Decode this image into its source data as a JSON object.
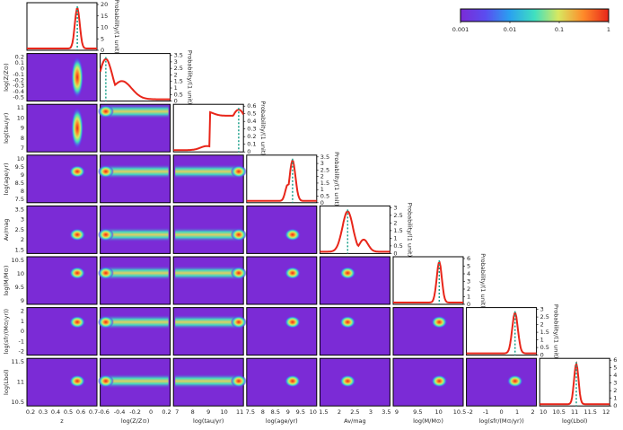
{
  "chart_data": {
    "type": "corner",
    "title": "",
    "parameters": [
      {
        "key": "z",
        "label": "z",
        "ticks": [
          "0.2",
          "0.3",
          "0.4",
          "0.5",
          "0.6",
          "0.7"
        ],
        "range": [
          0.15,
          0.72
        ],
        "peak": 0.56,
        "sigma": 0.02
      },
      {
        "key": "logZ",
        "label": "log(Z/Z⊙)",
        "ticks": [
          "-0.6",
          "-0.4",
          "-0.2",
          "0",
          "0.2"
        ],
        "range": [
          -0.62,
          0.25
        ],
        "peak": -0.55,
        "sigma": 0.08
      },
      {
        "key": "logtau",
        "label": "log(tau/yr)",
        "ticks": [
          "7",
          "8",
          "9",
          "10",
          "11"
        ],
        "range": [
          6.7,
          11.1
        ],
        "peak": 10.8,
        "sigma": 0.6
      },
      {
        "key": "logage",
        "label": "log(age/yr)",
        "ticks": [
          "7.5",
          "8",
          "8.5",
          "9",
          "9.5",
          "10"
        ],
        "range": [
          7.2,
          10.1
        ],
        "peak": 9.1,
        "sigma": 0.12
      },
      {
        "key": "Av",
        "label": "Av/mag",
        "ticks": [
          "1.5",
          "2",
          "2.5",
          "3",
          "3.5"
        ],
        "range": [
          1.2,
          3.6
        ],
        "peak": 2.15,
        "sigma": 0.18
      },
      {
        "key": "logM",
        "label": "log(M/M⊙)",
        "ticks": [
          "9",
          "9.5",
          "10",
          "10.5"
        ],
        "range": [
          8.85,
          10.75
        ],
        "peak": 10.1,
        "sigma": 0.07
      },
      {
        "key": "logSFR",
        "label": "log(sfr/(M⊙/yr))",
        "ticks": [
          "-2",
          "-1",
          "0",
          "1",
          "2"
        ],
        "range": [
          -2.6,
          2.3
        ],
        "peak": 0.8,
        "sigma": 0.2
      },
      {
        "key": "logLbol",
        "label": "log(Lbol)",
        "ticks": [
          "10",
          "10.5",
          "11",
          "11.5",
          "12"
        ],
        "range": [
          9.95,
          12.15
        ],
        "peak": 11.1,
        "sigma": 0.07
      }
    ],
    "diag_ylabel": "Probability/(1 unit)",
    "diag_yticks": [
      [
        "0",
        "5",
        "10",
        "15",
        "20"
      ],
      [
        "0",
        "0.5",
        "1",
        "1.5",
        "2",
        "2.5",
        "3",
        "3.5"
      ],
      [
        "0",
        "0.1",
        "0.2",
        "0.3",
        "0.4",
        "0.5",
        "0.6"
      ],
      [
        "0",
        "0.5",
        "1",
        "1.5",
        "2",
        "2.5",
        "3",
        "3.5"
      ],
      [
        "0",
        "0.5",
        "1",
        "1.5",
        "2",
        "2.5",
        "3"
      ],
      [
        "0",
        "1",
        "2",
        "3",
        "4",
        "5",
        "6"
      ],
      [
        "0",
        "0.5",
        "1",
        "1.5",
        "2",
        "2.5",
        "3"
      ],
      [
        "0",
        "1",
        "2",
        "3",
        "4",
        "5",
        "6"
      ]
    ],
    "row_yticks": [
      [],
      [
        "-0.5",
        "-0.4",
        "-0.3",
        "-0.2",
        "-0.1",
        "0",
        "0.1",
        "0.2"
      ],
      [
        "7",
        "8",
        "9",
        "10",
        "11"
      ],
      [
        "7.5",
        "8",
        "8.5",
        "9",
        "9.5",
        "10"
      ],
      [
        "1.5",
        "2",
        "2.5",
        "3",
        "3.5"
      ],
      [
        "9",
        "9.5",
        "10",
        "10.5"
      ],
      [
        "-2",
        "-1",
        "0",
        "1",
        "2"
      ],
      [
        "10.5",
        "11",
        "11.5"
      ]
    ],
    "colorbar": {
      "ticks": [
        "0.001",
        "0.01",
        "0.1",
        "1"
      ],
      "scale": "log",
      "colormap": "rainbow"
    }
  }
}
